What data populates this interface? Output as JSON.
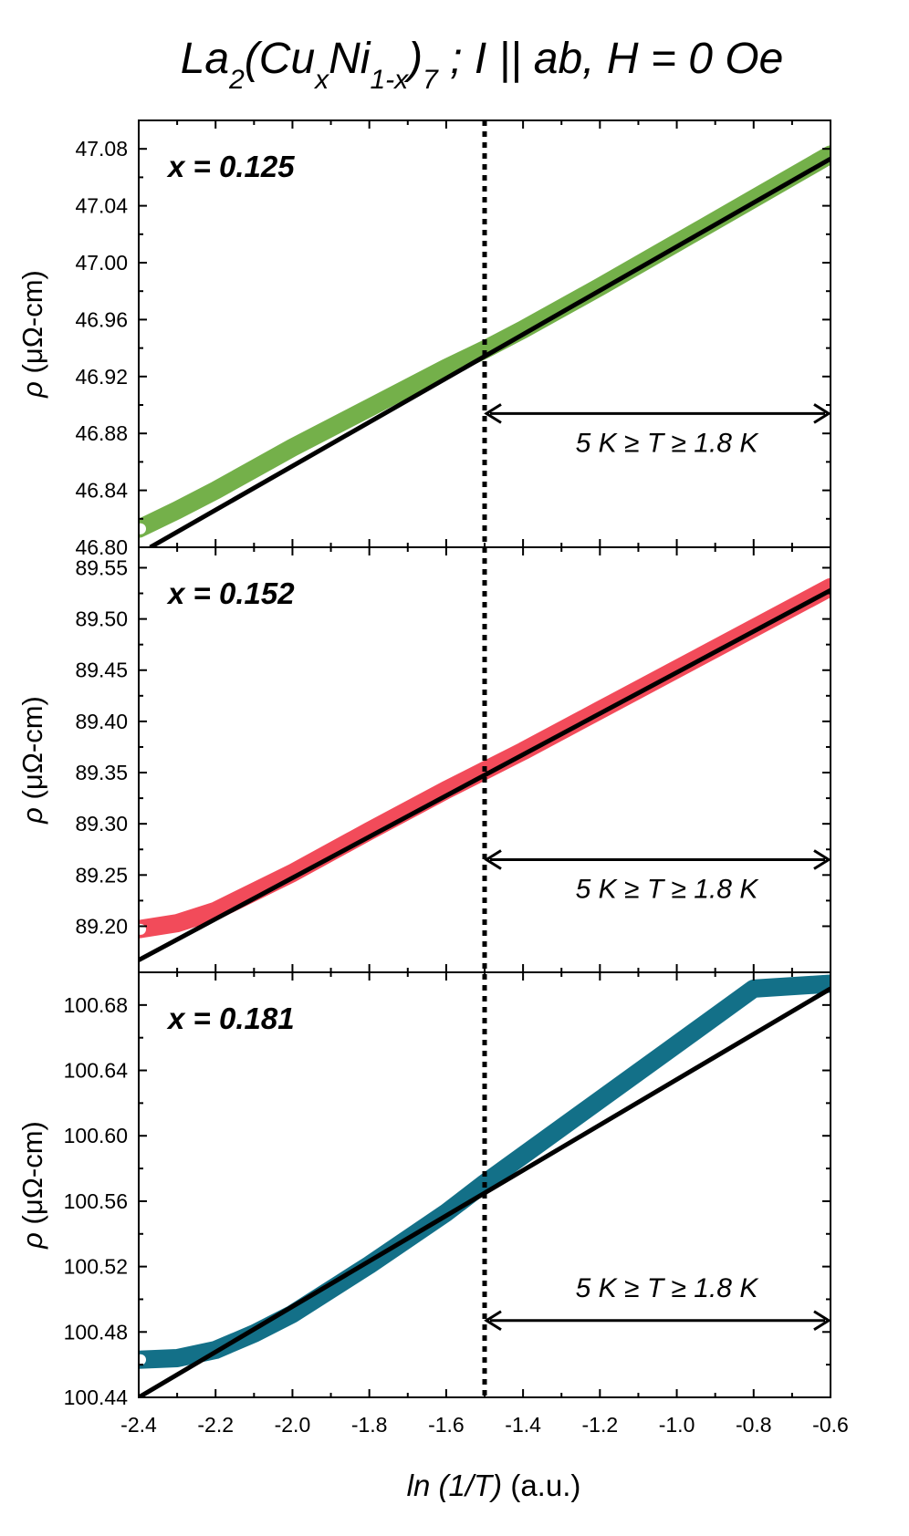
{
  "title": {
    "prefix": "La",
    "sub1": "2",
    "part2": "(Cu",
    "sub2": "x",
    "part3": "Ni",
    "sub3": "1-x",
    "part4": ")",
    "sub4": "7",
    "suffix": " ; I || ab, H = 0 Oe"
  },
  "x_axis": {
    "label_italic": "ln (1/T)",
    "label_plain": " (a.u.)",
    "ticks": [
      "-2.4",
      "-2.2",
      "-2.0",
      "-1.8",
      "-1.6",
      "-1.4",
      "-1.2",
      "-1.0",
      "-0.8",
      "-0.6"
    ],
    "range": [
      -2.4,
      -0.6
    ],
    "tick_values": [
      -2.4,
      -2.2,
      -2.0,
      -1.8,
      -1.6,
      -1.4,
      -1.2,
      -1.0,
      -0.8,
      -0.6
    ]
  },
  "y_axis_label": {
    "symbol": "ρ",
    "unit": " (μΩ-cm)"
  },
  "dotted_line_x": -1.5,
  "range_annotation": "5 K ≥ T ≥ 1.8 K",
  "chart_data": [
    {
      "type": "line",
      "panel_label": "x = 0.125",
      "color": "#74b04a",
      "ylim": [
        46.8,
        47.1
      ],
      "y_ticks": [
        "46.80",
        "46.84",
        "46.88",
        "46.92",
        "46.96",
        "47.00",
        "47.04",
        "47.08"
      ],
      "y_tick_values": [
        46.8,
        46.84,
        46.88,
        46.92,
        46.96,
        47.0,
        47.04,
        47.08
      ],
      "data_x": [
        -2.4,
        -2.3,
        -2.2,
        -2.0,
        -1.8,
        -1.6,
        -1.5,
        -1.4,
        -1.2,
        -1.0,
        -0.8,
        -0.6
      ],
      "data_y": [
        46.813,
        46.826,
        46.84,
        46.87,
        46.898,
        46.926,
        46.939,
        46.953,
        46.983,
        47.014,
        47.045,
        47.076
      ],
      "fit_x": [
        -2.37,
        -0.6
      ],
      "fit_y": [
        46.8,
        47.073
      ],
      "annotation_y": 46.894
    },
    {
      "type": "line",
      "panel_label": "x = 0.152",
      "color": "#f24b5a",
      "ylim": [
        89.155,
        89.57
      ],
      "y_ticks": [
        "89.20",
        "89.25",
        "89.30",
        "89.35",
        "89.40",
        "89.45",
        "89.50",
        "89.55"
      ],
      "y_tick_values": [
        89.2,
        89.25,
        89.3,
        89.35,
        89.4,
        89.45,
        89.5,
        89.55
      ],
      "data_x": [
        -2.4,
        -2.3,
        -2.2,
        -2.0,
        -1.8,
        -1.6,
        -1.5,
        -1.4,
        -1.2,
        -1.0,
        -0.8,
        -0.6
      ],
      "data_y": [
        89.197,
        89.203,
        89.215,
        89.252,
        89.293,
        89.333,
        89.352,
        89.371,
        89.411,
        89.451,
        89.491,
        89.531
      ],
      "fit_x": [
        -2.4,
        -0.6
      ],
      "fit_y": [
        89.167,
        89.528
      ],
      "annotation_y": 89.265
    },
    {
      "type": "line",
      "panel_label": "x = 0.181",
      "color": "#137088",
      "ylim": [
        100.44,
        100.7
      ],
      "y_ticks": [
        "100.44",
        "100.48",
        "100.52",
        "100.56",
        "100.60",
        "100.64",
        "100.68"
      ],
      "y_tick_values": [
        100.44,
        100.48,
        100.52,
        100.56,
        100.6,
        100.64,
        100.68
      ],
      "data_x": [
        -2.4,
        -2.3,
        -2.2,
        -2.1,
        -2.0,
        -1.8,
        -1.6,
        -1.5,
        -1.4,
        -1.2,
        -1.0,
        -0.8,
        -0.6
      ],
      "data_y": [
        100.463,
        100.464,
        100.469,
        100.479,
        100.491,
        100.521,
        100.553,
        100.571,
        100.588,
        100.622,
        100.656,
        100.69,
        100.693
      ],
      "fit_x": [
        -2.4,
        -0.6
      ],
      "fit_y": [
        100.44,
        100.69
      ],
      "annotation_y": 100.487
    }
  ]
}
